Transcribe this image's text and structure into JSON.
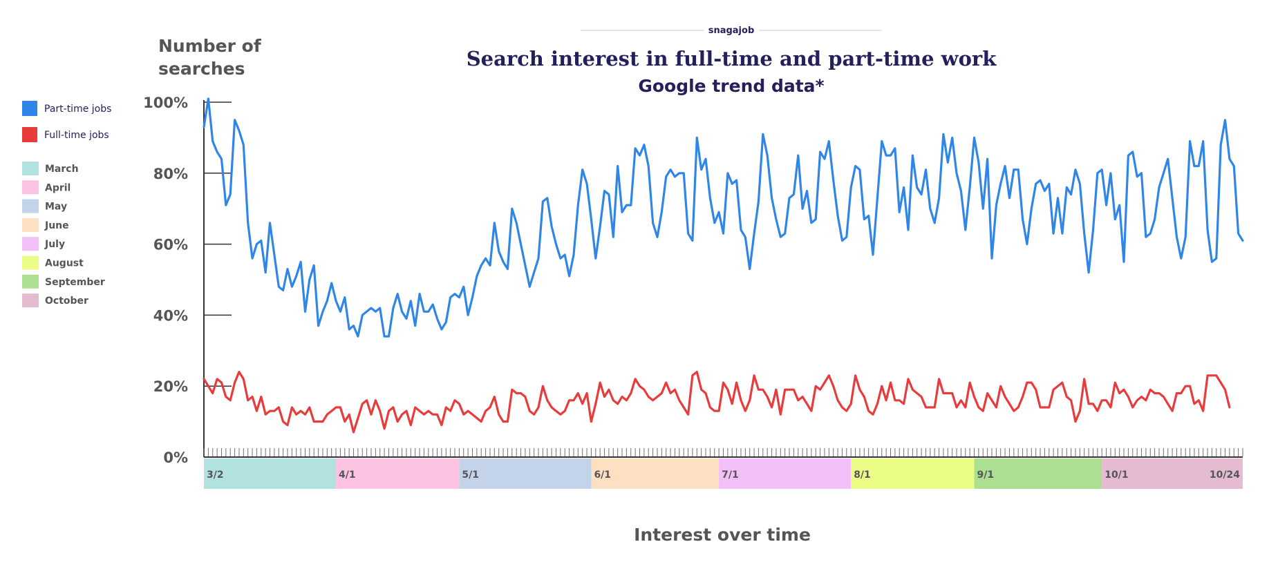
{
  "brand": "snagajob",
  "chart_data": {
    "type": "line",
    "title": "Search interest in full-time and part-time work",
    "subtitle": "Google trend data*",
    "ylabel": "Number of searches",
    "xlabel": "Interest over time",
    "ylim": [
      0,
      100
    ],
    "yticks": [
      "100%",
      "80%",
      "60%",
      "40%",
      "20%",
      "0%"
    ],
    "ytick_values": [
      100,
      80,
      60,
      40,
      20,
      0
    ],
    "x_start": "3/2",
    "x_end": "10/24",
    "grid": false,
    "legend_position": "left",
    "colors": {
      "title": "#23205c",
      "axis_text": "#555555",
      "part_time": "#2f86e8",
      "full_time": "#e83b3b"
    },
    "months": [
      {
        "name": "March",
        "color": "#b2e2e0",
        "start_day": 0,
        "end_day": 30,
        "label": "3/2"
      },
      {
        "name": "April",
        "color": "#fcc3e3",
        "start_day": 30,
        "end_day": 58,
        "label": "4/1"
      },
      {
        "name": "May",
        "color": "#c3d4ea",
        "start_day": 58,
        "end_day": 88,
        "label": "5/1"
      },
      {
        "name": "June",
        "color": "#fde0c1",
        "start_day": 88,
        "end_day": 117,
        "label": "6/1"
      },
      {
        "name": "July",
        "color": "#f2bff8",
        "start_day": 117,
        "end_day": 147,
        "label": "7/1"
      },
      {
        "name": "August",
        "color": "#ecfd85",
        "start_day": 147,
        "end_day": 175,
        "label": "8/1"
      },
      {
        "name": "September",
        "color": "#addf93",
        "start_day": 175,
        "end_day": 204,
        "label": "9/1"
      },
      {
        "name": "October",
        "color": "#e5bbd1",
        "start_day": 204,
        "end_day": 223,
        "label": "10/1"
      }
    ],
    "end_label": "10/24",
    "series": [
      {
        "name": "Part-time jobs",
        "color": "#2f86e8",
        "values": [
          93,
          101,
          89,
          86,
          84,
          71,
          74,
          95,
          92,
          88,
          66,
          56,
          60,
          61,
          52,
          66,
          57,
          48,
          47,
          53,
          48,
          51,
          55,
          41,
          50,
          54,
          37,
          41,
          44,
          49,
          44,
          41,
          45,
          36,
          37,
          34,
          40,
          41,
          42,
          41,
          42,
          34,
          34,
          42,
          46,
          41,
          39,
          44,
          37,
          46,
          41,
          41,
          43,
          39,
          36,
          38,
          45,
          46,
          45,
          48,
          40,
          45,
          51,
          54,
          56,
          54,
          66,
          58,
          55,
          53,
          70,
          66,
          60,
          54,
          48,
          52,
          56,
          72,
          73,
          65,
          60,
          56,
          57,
          51,
          57,
          71,
          81,
          77,
          67,
          56,
          65,
          75,
          74,
          62,
          82,
          69,
          71,
          71,
          87,
          85,
          88,
          82,
          66,
          62,
          69,
          79,
          81,
          79,
          80,
          80,
          63,
          61,
          90,
          81,
          84,
          73,
          66,
          69,
          63,
          80,
          77,
          78,
          64,
          62,
          53,
          63,
          72,
          91,
          85,
          73,
          67,
          62,
          63,
          73,
          74,
          85,
          70,
          75,
          66,
          67,
          86,
          84,
          89,
          78,
          68,
          61,
          62,
          76,
          82,
          81,
          67,
          68,
          57,
          73,
          89,
          85,
          85,
          87,
          69,
          76,
          64,
          85,
          76,
          74,
          81,
          70,
          66,
          73,
          91,
          83,
          90,
          80,
          75,
          64,
          76,
          90,
          83,
          70,
          84,
          56,
          71,
          77,
          82,
          73,
          81,
          81,
          67,
          60,
          70,
          77,
          78,
          75,
          77,
          63,
          73,
          63,
          76,
          74,
          81,
          77,
          63,
          52,
          64,
          80,
          81,
          71,
          80,
          67,
          71,
          55,
          85,
          86,
          79,
          80,
          62,
          63,
          67,
          76,
          80,
          84,
          73,
          62,
          56,
          62,
          89,
          82,
          82,
          89,
          64,
          55,
          56,
          88,
          95,
          84,
          82,
          63,
          61
        ]
      },
      {
        "name": "Full-time jobs",
        "color": "#e83b3b",
        "values": [
          22,
          20,
          18,
          22,
          21,
          17,
          16,
          21,
          24,
          22,
          16,
          17,
          13,
          17,
          12,
          13,
          13,
          14,
          10,
          9,
          14,
          12,
          13,
          12,
          14,
          10,
          10,
          10,
          12,
          13,
          14,
          14,
          10,
          12,
          7,
          11,
          15,
          16,
          12,
          16,
          13,
          8,
          13,
          14,
          10,
          12,
          13,
          9,
          14,
          13,
          12,
          13,
          12,
          12,
          9,
          14,
          13,
          16,
          15,
          12,
          13,
          12,
          11,
          10,
          13,
          14,
          17,
          12,
          10,
          10,
          19,
          18,
          18,
          17,
          13,
          12,
          14,
          20,
          16,
          14,
          13,
          12,
          13,
          16,
          16,
          18,
          15,
          18,
          10,
          15,
          21,
          17,
          19,
          16,
          15,
          17,
          16,
          18,
          22,
          20,
          19,
          17,
          16,
          17,
          18,
          21,
          18,
          19,
          16,
          14,
          12,
          23,
          24,
          19,
          18,
          14,
          13,
          13,
          21,
          19,
          15,
          21,
          16,
          13,
          16,
          23,
          19,
          19,
          17,
          14,
          19,
          12,
          19,
          19,
          19,
          16,
          17,
          15,
          13,
          20,
          19,
          21,
          23,
          20,
          16,
          14,
          13,
          15,
          23,
          19,
          17,
          13,
          12,
          15,
          20,
          16,
          21,
          16,
          16,
          15,
          22,
          19,
          18,
          17,
          14,
          14,
          14,
          22,
          18,
          18,
          18,
          14,
          16,
          14,
          21,
          17,
          14,
          13,
          18,
          16,
          14,
          20,
          17,
          15,
          13,
          14,
          17,
          21,
          21,
          19,
          14,
          14,
          14,
          19,
          20,
          21,
          17,
          16,
          10,
          13,
          22,
          15,
          15,
          13,
          16,
          16,
          14,
          21,
          18,
          19,
          17,
          14,
          16,
          17,
          16,
          19,
          18,
          18,
          17,
          15,
          13,
          18,
          18,
          20,
          20,
          15,
          16,
          13,
          23,
          23,
          23,
          21,
          19,
          14
        ]
      }
    ]
  }
}
